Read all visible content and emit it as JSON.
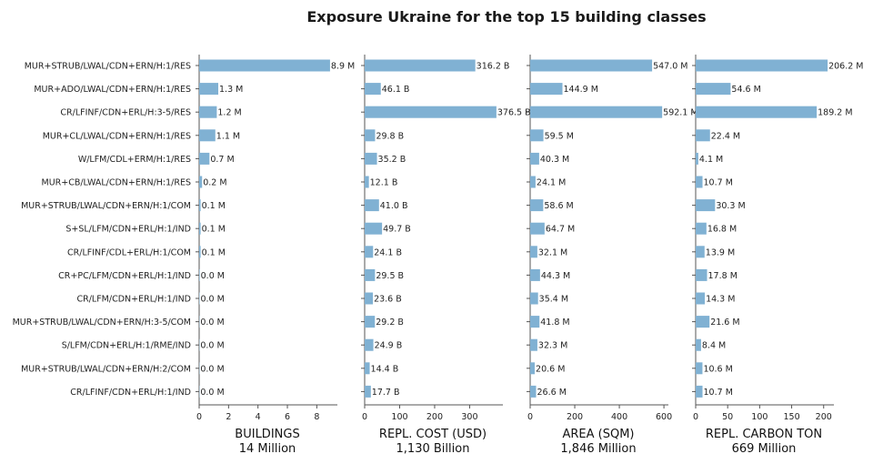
{
  "chart_data": {
    "type": "bar",
    "orientation": "horizontal",
    "title": "Exposure Ukraine for the top 15 building classes",
    "categories": [
      "MUR+STRUB/LWAL/CDN+ERN/H:1/RES",
      "MUR+ADO/LWAL/CDN+ERN/H:1/RES",
      "CR/LFINF/CDN+ERL/H:3-5/RES",
      "MUR+CL/LWAL/CDN+ERN/H:1/RES",
      "W/LFM/CDL+ERM/H:1/RES",
      "MUR+CB/LWAL/CDN+ERN/H:1/RES",
      "MUR+STRUB/LWAL/CDN+ERN/H:1/COM",
      "S+SL/LFM/CDN+ERL/H:1/IND",
      "CR/LFINF/CDL+ERL/H:1/COM",
      "CR+PC/LFM/CDN+ERL/H:1/IND",
      "CR/LFM/CDN+ERL/H:1/IND",
      "MUR+STRUB/LWAL/CDN+ERN/H:3-5/COM",
      "S/LFM/CDN+ERL/H:1/RME/IND",
      "MUR+STRUB/LWAL/CDN+ERN/H:2/COM",
      "CR/LFINF/CDN+ERL/H:1/IND"
    ],
    "panels": [
      {
        "xlabel": "BUILDINGS",
        "total": "14 Million",
        "xlim": [
          0,
          9.4
        ],
        "ticks": [
          0,
          2,
          4,
          6,
          8
        ],
        "values": [
          8.9,
          1.3,
          1.2,
          1.1,
          0.7,
          0.2,
          0.1,
          0.1,
          0.1,
          0.04,
          0.03,
          0.02,
          0.02,
          0.02,
          0.02
        ],
        "labels": [
          "8.9 M",
          "1.3 M",
          "1.2 M",
          "1.1 M",
          "0.7 M",
          "0.2 M",
          "0.1 M",
          "0.1 M",
          "0.1 M",
          "0.0 M",
          "0.0 M",
          "0.0 M",
          "0.0 M",
          "0.0 M",
          "0.0 M"
        ]
      },
      {
        "xlabel": "REPL. COST (USD)",
        "total": "1,130 Billion",
        "xlim": [
          0,
          395
        ],
        "ticks": [
          0,
          100,
          200,
          300
        ],
        "values": [
          316.2,
          46.1,
          376.5,
          29.8,
          35.2,
          12.1,
          41.0,
          49.7,
          24.1,
          29.5,
          23.6,
          29.2,
          24.9,
          14.4,
          17.7
        ],
        "labels": [
          "316.2 B",
          "46.1 B",
          "376.5 B",
          "29.8 B",
          "35.2 B",
          "12.1 B",
          "41.0 B",
          "49.7 B",
          "24.1 B",
          "29.5 B",
          "23.6 B",
          "29.2 B",
          "24.9 B",
          "14.4 B",
          "17.7 B"
        ]
      },
      {
        "xlabel": "AREA (SQM)",
        "total": "1,846 Million",
        "xlim": [
          0,
          620
        ],
        "ticks": [
          0,
          200,
          400,
          600
        ],
        "values": [
          547.0,
          144.9,
          592.1,
          59.5,
          40.3,
          24.1,
          58.6,
          64.7,
          32.1,
          44.3,
          35.4,
          41.8,
          32.3,
          20.6,
          26.6
        ],
        "labels": [
          "547.0 M",
          "144.9 M",
          "592.1 M",
          "59.5 M",
          "40.3 M",
          "24.1 M",
          "58.6 M",
          "64.7 M",
          "32.1 M",
          "44.3 M",
          "35.4 M",
          "41.8 M",
          "32.3 M",
          "20.6 M",
          "26.6 M"
        ]
      },
      {
        "xlabel": "REPL. CARBON TON",
        "total": "669 Million",
        "xlim": [
          0,
          216
        ],
        "ticks": [
          0,
          50,
          100,
          150,
          200
        ],
        "values": [
          206.2,
          54.6,
          189.2,
          22.4,
          4.1,
          10.7,
          30.3,
          16.8,
          13.9,
          17.8,
          14.3,
          21.6,
          8.4,
          10.6,
          10.7
        ],
        "labels": [
          "206.2 M",
          "54.6 M",
          "189.2 M",
          "22.4 M",
          "4.1 M",
          "10.7 M",
          "30.3 M",
          "16.8 M",
          "13.9 M",
          "17.8 M",
          "14.3 M",
          "21.6 M",
          "8.4 M",
          "10.6 M",
          "10.7 M"
        ]
      }
    ],
    "bar_color": "#80b1d3",
    "grid": false
  }
}
